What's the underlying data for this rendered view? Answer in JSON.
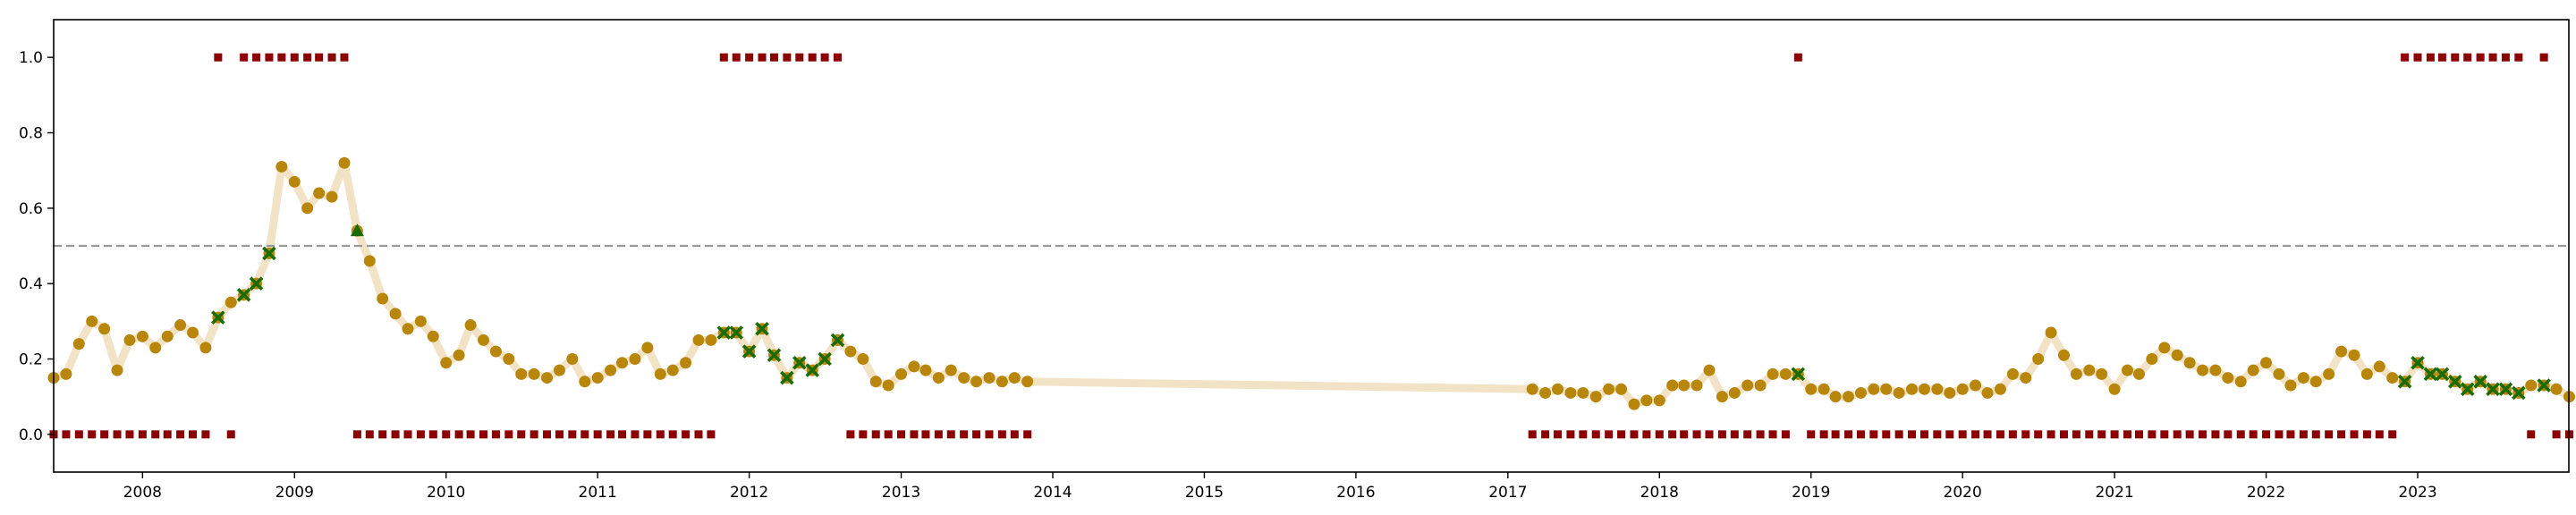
{
  "chart_data": {
    "type": "scatter",
    "title": "",
    "xlabel": "",
    "ylabel": "",
    "xlim": [
      "2007-06-01",
      "2023-12-31"
    ],
    "ylim": [
      -0.1,
      1.1
    ],
    "x_ticks": [
      "2008",
      "2009",
      "2010",
      "2011",
      "2012",
      "2013",
      "2014",
      "2015",
      "2016",
      "2017",
      "2018",
      "2019",
      "2020",
      "2021",
      "2022",
      "2023"
    ],
    "y_ticks": [
      "0.0",
      "0.2",
      "0.4",
      "0.6",
      "0.8",
      "1.0"
    ],
    "threshold": 0.5,
    "grid": false,
    "colors": {
      "trend_line": "#f2e3c6",
      "score_marker": "#b8860b",
      "cross_marker": "#1a6b00",
      "triangle_marker": "#1a6b00",
      "flag_marker": "#8b0000",
      "threshold_line": "#999999"
    },
    "score_series": [
      [
        "2007-06",
        0.15
      ],
      [
        "2007-07",
        0.16
      ],
      [
        "2007-08",
        0.24
      ],
      [
        "2007-09",
        0.3
      ],
      [
        "2007-10",
        0.28
      ],
      [
        "2007-11",
        0.17
      ],
      [
        "2007-12",
        0.25
      ],
      [
        "2008-01",
        0.26
      ],
      [
        "2008-02",
        0.23
      ],
      [
        "2008-03",
        0.26
      ],
      [
        "2008-04",
        0.29
      ],
      [
        "2008-05",
        0.27
      ],
      [
        "2008-06",
        0.23
      ],
      [
        "2008-07",
        0.31
      ],
      [
        "2008-08",
        0.35
      ],
      [
        "2008-09",
        0.37
      ],
      [
        "2008-10",
        0.4
      ],
      [
        "2008-11",
        0.48
      ],
      [
        "2008-12",
        0.71
      ],
      [
        "2009-01",
        0.67
      ],
      [
        "2009-02",
        0.6
      ],
      [
        "2009-03",
        0.64
      ],
      [
        "2009-04",
        0.63
      ],
      [
        "2009-05",
        0.72
      ],
      [
        "2009-06",
        0.54
      ],
      [
        "2009-07",
        0.46
      ],
      [
        "2009-08",
        0.36
      ],
      [
        "2009-09",
        0.32
      ],
      [
        "2009-10",
        0.28
      ],
      [
        "2009-11",
        0.3
      ],
      [
        "2009-12",
        0.26
      ],
      [
        "2010-01",
        0.19
      ],
      [
        "2010-02",
        0.21
      ],
      [
        "2010-03",
        0.29
      ],
      [
        "2010-04",
        0.25
      ],
      [
        "2010-05",
        0.22
      ],
      [
        "2010-06",
        0.2
      ],
      [
        "2010-07",
        0.16
      ],
      [
        "2010-08",
        0.16
      ],
      [
        "2010-09",
        0.15
      ],
      [
        "2010-10",
        0.17
      ],
      [
        "2010-11",
        0.2
      ],
      [
        "2010-12",
        0.14
      ],
      [
        "2011-01",
        0.15
      ],
      [
        "2011-02",
        0.17
      ],
      [
        "2011-03",
        0.19
      ],
      [
        "2011-04",
        0.2
      ],
      [
        "2011-05",
        0.23
      ],
      [
        "2011-06",
        0.16
      ],
      [
        "2011-07",
        0.17
      ],
      [
        "2011-08",
        0.19
      ],
      [
        "2011-09",
        0.25
      ],
      [
        "2011-10",
        0.25
      ],
      [
        "2011-11",
        0.27
      ],
      [
        "2011-12",
        0.27
      ],
      [
        "2012-01",
        0.22
      ],
      [
        "2012-02",
        0.28
      ],
      [
        "2012-03",
        0.21
      ],
      [
        "2012-04",
        0.15
      ],
      [
        "2012-05",
        0.19
      ],
      [
        "2012-06",
        0.17
      ],
      [
        "2012-07",
        0.2
      ],
      [
        "2012-08",
        0.25
      ],
      [
        "2012-09",
        0.22
      ],
      [
        "2012-10",
        0.2
      ],
      [
        "2012-11",
        0.14
      ],
      [
        "2012-12",
        0.13
      ],
      [
        "2013-01",
        0.16
      ],
      [
        "2013-02",
        0.18
      ],
      [
        "2013-03",
        0.17
      ],
      [
        "2013-04",
        0.15
      ],
      [
        "2013-05",
        0.17
      ],
      [
        "2013-06",
        0.15
      ],
      [
        "2013-07",
        0.14
      ],
      [
        "2013-08",
        0.15
      ],
      [
        "2013-09",
        0.14
      ],
      [
        "2013-10",
        0.15
      ],
      [
        "2013-11",
        0.14
      ],
      [
        "2017-03",
        0.12
      ],
      [
        "2017-04",
        0.11
      ],
      [
        "2017-05",
        0.12
      ],
      [
        "2017-06",
        0.11
      ],
      [
        "2017-07",
        0.11
      ],
      [
        "2017-08",
        0.1
      ],
      [
        "2017-09",
        0.12
      ],
      [
        "2017-10",
        0.12
      ],
      [
        "2017-11",
        0.08
      ],
      [
        "2017-12",
        0.09
      ],
      [
        "2018-01",
        0.09
      ],
      [
        "2018-02",
        0.13
      ],
      [
        "2018-03",
        0.13
      ],
      [
        "2018-04",
        0.13
      ],
      [
        "2018-05",
        0.17
      ],
      [
        "2018-06",
        0.1
      ],
      [
        "2018-07",
        0.11
      ],
      [
        "2018-08",
        0.13
      ],
      [
        "2018-09",
        0.13
      ],
      [
        "2018-10",
        0.16
      ],
      [
        "2018-11",
        0.16
      ],
      [
        "2018-12",
        0.16
      ],
      [
        "2019-01",
        0.12
      ],
      [
        "2019-02",
        0.12
      ],
      [
        "2019-03",
        0.1
      ],
      [
        "2019-04",
        0.1
      ],
      [
        "2019-05",
        0.11
      ],
      [
        "2019-06",
        0.12
      ],
      [
        "2019-07",
        0.12
      ],
      [
        "2019-08",
        0.11
      ],
      [
        "2019-09",
        0.12
      ],
      [
        "2019-10",
        0.12
      ],
      [
        "2019-11",
        0.12
      ],
      [
        "2019-12",
        0.11
      ],
      [
        "2020-01",
        0.12
      ],
      [
        "2020-02",
        0.13
      ],
      [
        "2020-03",
        0.11
      ],
      [
        "2020-04",
        0.12
      ],
      [
        "2020-05",
        0.16
      ],
      [
        "2020-06",
        0.15
      ],
      [
        "2020-07",
        0.2
      ],
      [
        "2020-08",
        0.27
      ],
      [
        "2020-09",
        0.21
      ],
      [
        "2020-10",
        0.16
      ],
      [
        "2020-11",
        0.17
      ],
      [
        "2020-12",
        0.16
      ],
      [
        "2021-01",
        0.12
      ],
      [
        "2021-02",
        0.17
      ],
      [
        "2021-03",
        0.16
      ],
      [
        "2021-04",
        0.2
      ],
      [
        "2021-05",
        0.23
      ],
      [
        "2021-06",
        0.21
      ],
      [
        "2021-07",
        0.19
      ],
      [
        "2021-08",
        0.17
      ],
      [
        "2021-09",
        0.17
      ],
      [
        "2021-10",
        0.15
      ],
      [
        "2021-11",
        0.14
      ],
      [
        "2021-12",
        0.17
      ],
      [
        "2022-01",
        0.19
      ],
      [
        "2022-02",
        0.16
      ],
      [
        "2022-03",
        0.13
      ],
      [
        "2022-04",
        0.15
      ],
      [
        "2022-05",
        0.14
      ],
      [
        "2022-06",
        0.16
      ],
      [
        "2022-07",
        0.22
      ],
      [
        "2022-08",
        0.21
      ],
      [
        "2022-09",
        0.16
      ],
      [
        "2022-10",
        0.18
      ],
      [
        "2022-11",
        0.15
      ],
      [
        "2022-12",
        0.14
      ],
      [
        "2023-01",
        0.19
      ],
      [
        "2023-02",
        0.16
      ],
      [
        "2023-03",
        0.16
      ],
      [
        "2023-04",
        0.14
      ],
      [
        "2023-05",
        0.12
      ],
      [
        "2023-06",
        0.14
      ],
      [
        "2023-07",
        0.12
      ],
      [
        "2023-08",
        0.12
      ],
      [
        "2023-09",
        0.11
      ],
      [
        "2023-10",
        0.13
      ],
      [
        "2023-11",
        0.13
      ],
      [
        "2023-12",
        0.12
      ],
      [
        "2024-01",
        0.1
      ]
    ],
    "cross_points": [
      [
        "2008-07",
        0.31
      ],
      [
        "2008-09",
        0.37
      ],
      [
        "2008-10",
        0.4
      ],
      [
        "2008-11",
        0.48
      ],
      [
        "2011-11",
        0.27
      ],
      [
        "2011-12",
        0.27
      ],
      [
        "2012-01",
        0.22
      ],
      [
        "2012-02",
        0.28
      ],
      [
        "2012-03",
        0.21
      ],
      [
        "2012-04",
        0.15
      ],
      [
        "2012-05",
        0.19
      ],
      [
        "2012-06",
        0.17
      ],
      [
        "2012-07",
        0.2
      ],
      [
        "2012-08",
        0.25
      ],
      [
        "2018-12",
        0.16
      ],
      [
        "2022-12",
        0.14
      ],
      [
        "2023-01",
        0.19
      ],
      [
        "2023-02",
        0.16
      ],
      [
        "2023-03",
        0.16
      ],
      [
        "2023-04",
        0.14
      ],
      [
        "2023-05",
        0.12
      ],
      [
        "2023-06",
        0.14
      ],
      [
        "2023-07",
        0.12
      ],
      [
        "2023-08",
        0.12
      ],
      [
        "2023-09",
        0.11
      ],
      [
        "2023-11",
        0.13
      ]
    ],
    "triangle_points": [
      [
        "2009-06",
        0.54
      ]
    ],
    "flag_high": [
      "2008-07",
      "2008-09",
      "2008-10",
      "2008-11",
      "2008-12",
      "2009-01",
      "2009-02",
      "2009-03",
      "2009-04",
      "2009-05",
      "2011-11",
      "2011-12",
      "2012-01",
      "2012-02",
      "2012-03",
      "2012-04",
      "2012-05",
      "2012-06",
      "2012-07",
      "2012-08",
      "2018-12",
      "2022-12",
      "2023-01",
      "2023-02",
      "2023-03",
      "2023-04",
      "2023-05",
      "2023-06",
      "2023-07",
      "2023-08",
      "2023-09",
      "2023-11"
    ],
    "flag_low": [
      "2007-06",
      "2007-07",
      "2007-08",
      "2007-09",
      "2007-10",
      "2007-11",
      "2007-12",
      "2008-01",
      "2008-02",
      "2008-03",
      "2008-04",
      "2008-05",
      "2008-06",
      "2008-08",
      "2009-06",
      "2009-07",
      "2009-08",
      "2009-09",
      "2009-10",
      "2009-11",
      "2009-12",
      "2010-01",
      "2010-02",
      "2010-03",
      "2010-04",
      "2010-05",
      "2010-06",
      "2010-07",
      "2010-08",
      "2010-09",
      "2010-10",
      "2010-11",
      "2010-12",
      "2011-01",
      "2011-02",
      "2011-03",
      "2011-04",
      "2011-05",
      "2011-06",
      "2011-07",
      "2011-08",
      "2011-09",
      "2011-10",
      "2012-09",
      "2012-10",
      "2012-11",
      "2012-12",
      "2013-01",
      "2013-02",
      "2013-03",
      "2013-04",
      "2013-05",
      "2013-06",
      "2013-07",
      "2013-08",
      "2013-09",
      "2013-10",
      "2013-11",
      "2017-03",
      "2017-04",
      "2017-05",
      "2017-06",
      "2017-07",
      "2017-08",
      "2017-09",
      "2017-10",
      "2017-11",
      "2017-12",
      "2018-01",
      "2018-02",
      "2018-03",
      "2018-04",
      "2018-05",
      "2018-06",
      "2018-07",
      "2018-08",
      "2018-09",
      "2018-10",
      "2018-11",
      "2019-01",
      "2019-02",
      "2019-03",
      "2019-04",
      "2019-05",
      "2019-06",
      "2019-07",
      "2019-08",
      "2019-09",
      "2019-10",
      "2019-11",
      "2019-12",
      "2020-01",
      "2020-02",
      "2020-03",
      "2020-04",
      "2020-05",
      "2020-06",
      "2020-07",
      "2020-08",
      "2020-09",
      "2020-10",
      "2020-11",
      "2020-12",
      "2021-01",
      "2021-02",
      "2021-03",
      "2021-04",
      "2021-05",
      "2021-06",
      "2021-07",
      "2021-08",
      "2021-09",
      "2021-10",
      "2021-11",
      "2021-12",
      "2022-01",
      "2022-02",
      "2022-03",
      "2022-04",
      "2022-05",
      "2022-06",
      "2022-07",
      "2022-08",
      "2022-09",
      "2022-10",
      "2022-11",
      "2023-10",
      "2023-12",
      "2024-01"
    ]
  }
}
